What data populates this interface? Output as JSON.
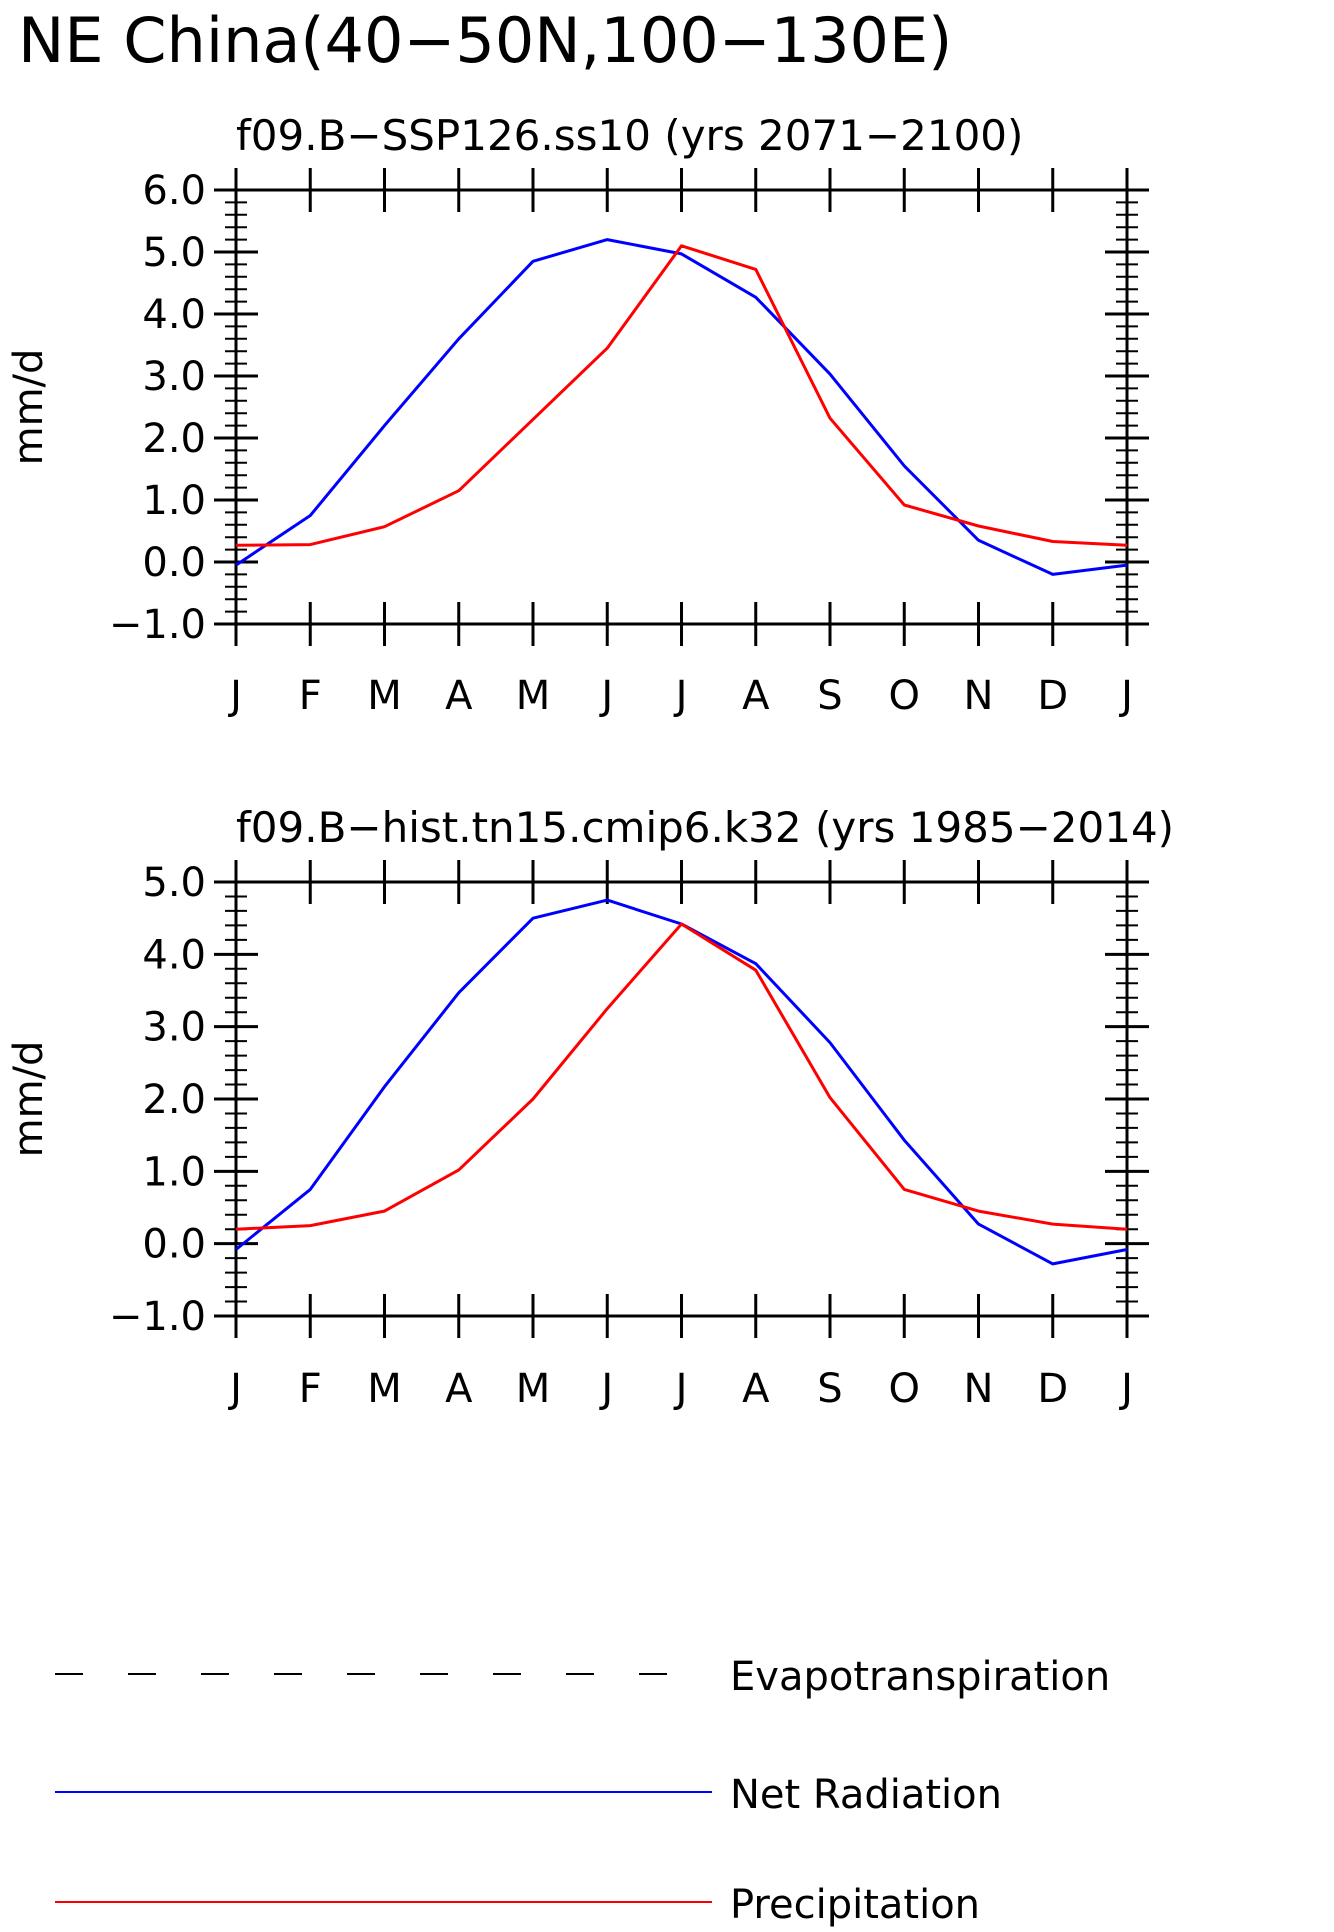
{
  "main_title": "NE China(40−50N,100−130E)",
  "legend": [
    {
      "label": "Evapotranspiration",
      "color": "#000000",
      "style": "dashed"
    },
    {
      "label": "Net Radiation",
      "color": "#0000ff",
      "style": "solid"
    },
    {
      "label": "Precipitation",
      "color": "#ff0000",
      "style": "solid"
    }
  ],
  "chart_data": [
    {
      "type": "line",
      "title": "f09.B−SSP126.ss10 (yrs 2071−2100)",
      "ylabel": "mm/d",
      "xlabel": "",
      "categories": [
        "J",
        "F",
        "M",
        "A",
        "M",
        "J",
        "J",
        "A",
        "S",
        "O",
        "N",
        "D",
        "J"
      ],
      "ylim": [
        -1.0,
        6.0
      ],
      "yticks": [
        "−1.0",
        "0.0",
        "1.0",
        "2.0",
        "3.0",
        "4.0",
        "5.0",
        "6.0"
      ],
      "grid": false,
      "series": [
        {
          "name": "Net Radiation",
          "color": "#0000ff",
          "values": [
            -0.05,
            0.75,
            2.2,
            3.6,
            4.85,
            5.2,
            4.97,
            4.27,
            3.03,
            1.55,
            0.35,
            -0.2,
            -0.05
          ]
        },
        {
          "name": "Precipitation",
          "color": "#ff0000",
          "values": [
            0.27,
            0.28,
            0.57,
            1.15,
            2.3,
            3.45,
            5.1,
            4.72,
            2.32,
            0.92,
            0.58,
            0.33,
            0.27
          ]
        }
      ]
    },
    {
      "type": "line",
      "title": "f09.B−hist.tn15.cmip6.k32 (yrs 1985−2014)",
      "ylabel": "mm/d",
      "xlabel": "",
      "categories": [
        "J",
        "F",
        "M",
        "A",
        "M",
        "J",
        "J",
        "A",
        "S",
        "O",
        "N",
        "D",
        "J"
      ],
      "ylim": [
        -1.0,
        5.0
      ],
      "yticks": [
        "−1.0",
        "0.0",
        "1.0",
        "2.0",
        "3.0",
        "4.0",
        "5.0"
      ],
      "grid": false,
      "series": [
        {
          "name": "Net Radiation",
          "color": "#0000ff",
          "values": [
            -0.08,
            0.75,
            2.17,
            3.47,
            4.5,
            4.75,
            4.42,
            3.87,
            2.78,
            1.43,
            0.27,
            -0.28,
            -0.08
          ]
        },
        {
          "name": "Precipitation",
          "color": "#ff0000",
          "values": [
            0.2,
            0.25,
            0.45,
            1.02,
            2.0,
            3.25,
            4.42,
            3.78,
            2.02,
            0.75,
            0.45,
            0.27,
            0.2
          ]
        }
      ]
    }
  ]
}
